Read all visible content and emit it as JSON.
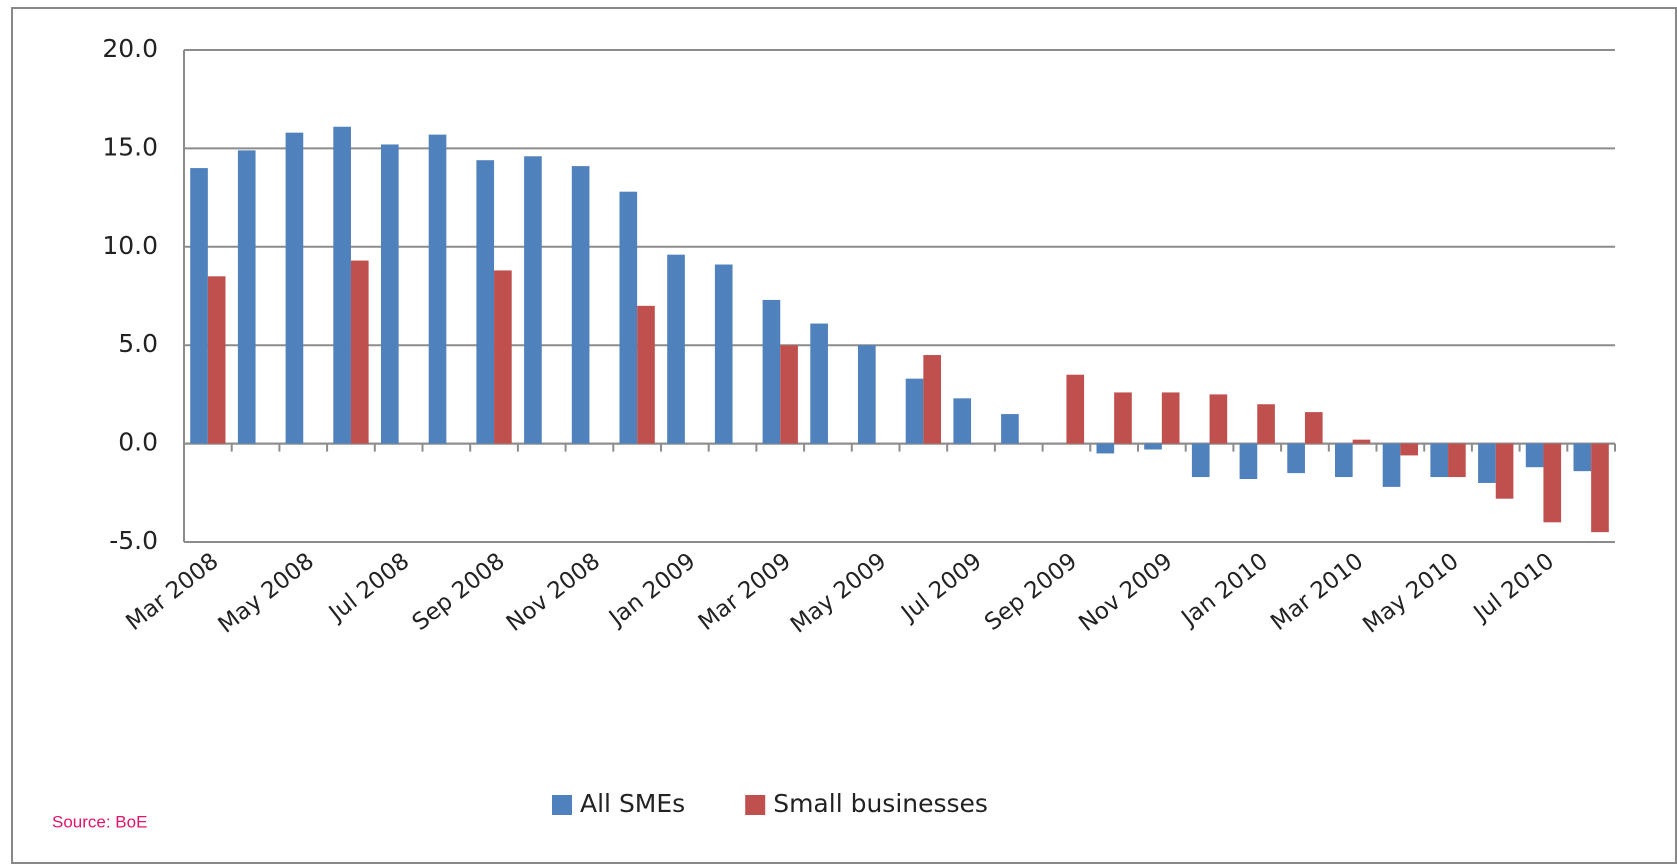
{
  "chart_data": {
    "type": "bar",
    "categories": [
      "Mar 2008",
      null,
      "May 2008",
      null,
      "Jul 2008",
      null,
      "Sep 2008",
      null,
      "Nov 2008",
      null,
      "Jan 2009",
      null,
      "Mar 2009",
      null,
      "May 2009",
      null,
      "Jul 2009",
      null,
      "Sep 2009",
      null,
      "Nov 2009",
      null,
      "Jan 2010",
      null,
      "Mar 2010",
      null,
      "May 2010",
      null,
      "Jul 2010",
      null
    ],
    "series": [
      {
        "name": "All SMEs",
        "color": "#4f81bd",
        "values": [
          14.0,
          14.9,
          15.8,
          16.1,
          15.2,
          15.7,
          14.4,
          14.6,
          14.1,
          12.8,
          9.6,
          9.1,
          7.3,
          6.1,
          5.0,
          3.3,
          2.3,
          1.5,
          null,
          -0.5,
          -0.3,
          -1.7,
          -1.8,
          -1.5,
          -1.7,
          -2.2,
          -1.7,
          -2.0,
          -1.2,
          -1.4
        ]
      },
      {
        "name": "Small businesses",
        "color": "#c0504d",
        "values": [
          8.5,
          null,
          null,
          9.3,
          null,
          null,
          8.8,
          null,
          null,
          7.0,
          null,
          null,
          5.0,
          null,
          null,
          4.5,
          null,
          null,
          3.5,
          2.6,
          2.6,
          2.5,
          2.0,
          1.6,
          0.2,
          -0.6,
          -1.7,
          -2.8,
          -4.0,
          -4.5
        ]
      }
    ],
    "ylim": [
      -5,
      20
    ],
    "yticks": [
      {
        "value": -5,
        "label": "-5.0"
      },
      {
        "value": 0,
        "label": "0.0"
      },
      {
        "value": 5,
        "label": "5.0"
      },
      {
        "value": 10,
        "label": "10.0"
      },
      {
        "value": 15,
        "label": "15.0"
      },
      {
        "value": 20,
        "label": "20.0"
      }
    ],
    "grid": true,
    "legend": "bottom",
    "source": "Source: BoE"
  }
}
